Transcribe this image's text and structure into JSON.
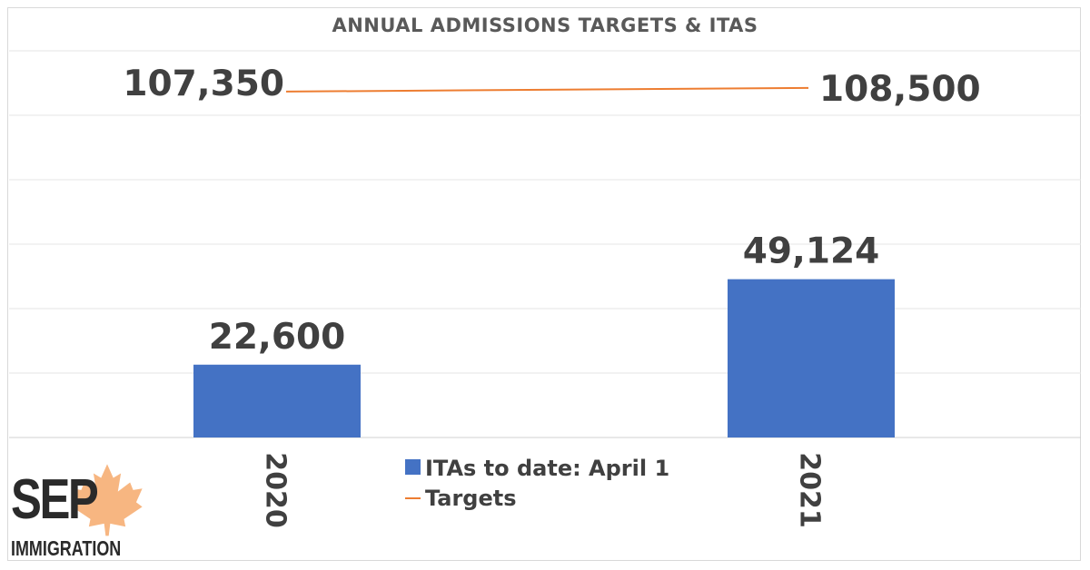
{
  "chart_data": {
    "type": "bar+line",
    "title": "ANNUAL ADMISSIONS TARGETS & ITAS",
    "categories": [
      "2020",
      "2021"
    ],
    "series": [
      {
        "name": "ITAs to date: April 1",
        "type": "bar",
        "color": "#4472C4",
        "values": [
          22600,
          49124
        ],
        "labels": [
          "22,600",
          "49,124"
        ]
      },
      {
        "name": "Targets",
        "type": "line",
        "color": "#ED7D31",
        "values": [
          107350,
          108500
        ],
        "labels": [
          "107,350",
          "108,500"
        ]
      }
    ],
    "ylim": [
      0,
      125000
    ],
    "y_gridlines": [
      0,
      20000,
      40000,
      60000,
      80000,
      100000,
      120000
    ],
    "grid": true,
    "legend_position": "bottom-center"
  },
  "logo": {
    "main": "SEP",
    "sub": "IMMIGRATION",
    "leaf_color": "#F6A96B"
  }
}
